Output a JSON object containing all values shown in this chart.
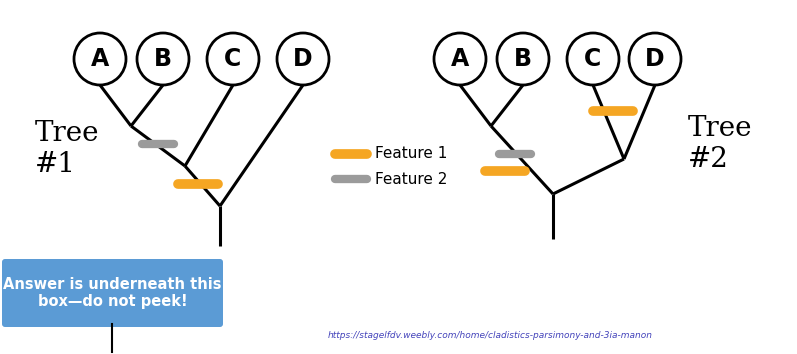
{
  "bg_color": "#ffffff",
  "orange_color": "#f5a623",
  "gray_color": "#9b9b9b",
  "black_color": "#000000",
  "blue_box_color": "#5b9bd5",
  "url_color": "#4444bb",
  "url_text": "https://stagelfdv.weebly.com/home/cladistics-parsimony-and-3ia-manon",
  "tree1_labels": [
    "A",
    "B",
    "C",
    "D"
  ],
  "tree2_labels": [
    "A",
    "B",
    "C",
    "D"
  ],
  "legend_feature1": "Feature 1",
  "legend_feature2": "Feature 2",
  "tree1_label": "Tree\n#1",
  "tree2_label": "Tree\n#2",
  "blue_box_text": "Answer is underneath this\nbox—do not peek!",
  "fig_w": 7.97,
  "fig_h": 3.54,
  "dpi": 100
}
